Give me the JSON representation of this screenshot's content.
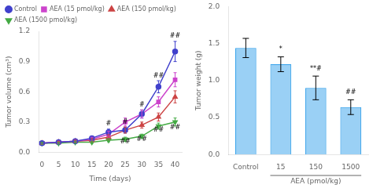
{
  "chart_data": [
    {
      "type": "line",
      "x": [
        0,
        5,
        10,
        15,
        20,
        25,
        30,
        35,
        40
      ],
      "xlabel": "Time (days)",
      "ylabel": "Tumor volume (cm³)",
      "xlim": [
        -1,
        42
      ],
      "xticks": [
        0,
        5,
        10,
        15,
        20,
        25,
        30,
        35,
        40
      ],
      "ylim": [
        0,
        1.2
      ],
      "yticks": [
        {
          "value": 0,
          "label": "0.0"
        },
        0.3,
        0.6,
        0.9,
        1.2
      ],
      "grid": false,
      "legend": "upper left",
      "series": [
        {
          "name": "Control",
          "color": "#4040cc",
          "marker": "circle",
          "values": [
            0.09,
            0.1,
            0.11,
            0.14,
            0.2,
            0.22,
            0.38,
            0.65,
            1.0
          ],
          "errors": [
            0.01,
            0.01,
            0.01,
            0.02,
            0.03,
            0.03,
            0.04,
            0.06,
            0.1
          ]
        },
        {
          "name": "AEA (15 pmol/kg)",
          "color": "#cc44cc",
          "marker": "square",
          "values": [
            0.09,
            0.1,
            0.11,
            0.13,
            0.18,
            0.3,
            0.38,
            0.5,
            0.72
          ],
          "errors": [
            0.01,
            0.01,
            0.01,
            0.02,
            0.03,
            0.04,
            0.04,
            0.05,
            0.07
          ]
        },
        {
          "name": "AEA (150 pmol/kg)",
          "color": "#cc4444",
          "marker": "triangle-up",
          "values": [
            0.09,
            0.1,
            0.11,
            0.12,
            0.15,
            0.22,
            0.27,
            0.35,
            0.55
          ],
          "errors": [
            0.01,
            0.01,
            0.01,
            0.015,
            0.025,
            0.03,
            0.03,
            0.04,
            0.06
          ]
        },
        {
          "name": "AEA (1500 pmol/kg)",
          "color": "#44aa44",
          "marker": "triangle-down",
          "values": [
            0.09,
            0.09,
            0.1,
            0.1,
            0.12,
            0.13,
            0.16,
            0.26,
            0.3
          ],
          "errors": [
            0.01,
            0.01,
            0.01,
            0.01,
            0.015,
            0.02,
            0.02,
            0.03,
            0.04
          ]
        }
      ],
      "annotations": [
        {
          "x": 20,
          "y": 0.25,
          "text": "#"
        },
        {
          "x": 25,
          "y": 0.27,
          "text": "#"
        },
        {
          "x": 25,
          "y": 0.07,
          "text": "##"
        },
        {
          "x": 30,
          "y": 0.44,
          "text": "#"
        },
        {
          "x": 30,
          "y": 0.1,
          "text": "##"
        },
        {
          "x": 35,
          "y": 0.73,
          "text": "##"
        },
        {
          "x": 35,
          "y": 0.19,
          "text": "##"
        },
        {
          "x": 40,
          "y": 1.12,
          "text": "##"
        },
        {
          "x": 40,
          "y": 0.215,
          "text": "##"
        }
      ]
    },
    {
      "type": "bar",
      "categories": [
        "Control",
        "15",
        "150",
        "1500"
      ],
      "values": [
        1.44,
        1.22,
        0.9,
        0.64
      ],
      "errors": [
        0.13,
        0.1,
        0.16,
        0.1
      ],
      "xlabel": "AEA (pmol/kg)",
      "ylabel": "Tumor weight (g)",
      "ylim": [
        0,
        2.0
      ],
      "yticks": [
        {
          "value": 0,
          "label": "0.0"
        },
        0.5,
        {
          "value": 1,
          "label": "1.0"
        },
        1.5,
        {
          "value": 2,
          "label": "2.0"
        }
      ],
      "grid": false,
      "annotations": [
        {
          "x": "15",
          "y": 1.38,
          "text": "*"
        },
        {
          "x": "150",
          "y": 1.12,
          "text": "**#"
        },
        {
          "x": "1500",
          "y": 0.8,
          "text": "##"
        }
      ]
    }
  ]
}
